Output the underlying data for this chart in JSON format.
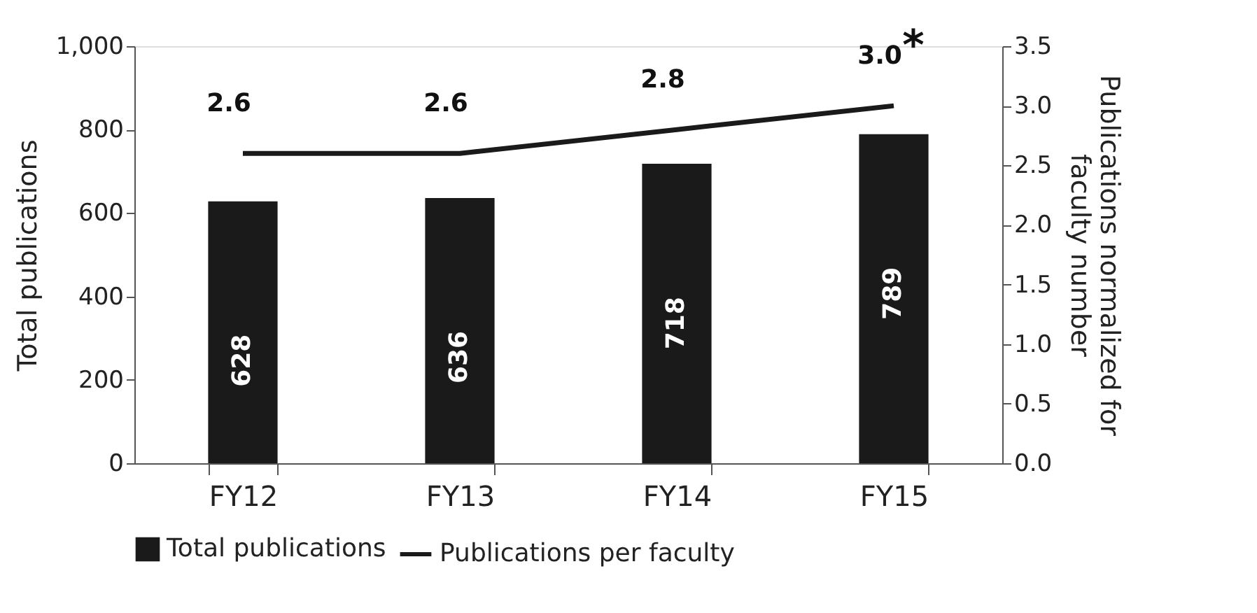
{
  "chart_data": {
    "type": "bar",
    "categories": [
      "FY12",
      "FY13",
      "FY14",
      "FY15"
    ],
    "ylabel": "Total publications",
    "y2label": "Publications normalized for faculty number",
    "series": [
      {
        "name": "Total publications",
        "color": "#1a1a1a",
        "values": [
          628,
          636,
          718,
          789
        ]
      },
      {
        "name": "Publications per faculty",
        "type": "line",
        "axis": "y2",
        "color": "#1a1a1a",
        "values": [
          2.6,
          2.6,
          2.8,
          3.0
        ],
        "value_labels": [
          "2.6",
          "2.6",
          "2.8",
          "3.0"
        ]
      }
    ],
    "ylim": [
      0,
      1000
    ],
    "yticks": [
      0,
      200,
      400,
      600,
      800,
      {
        "value": 1000,
        "label": "1,000"
      }
    ],
    "y2lim": [
      0,
      3.5
    ],
    "y2ticks": [
      {
        "value": 0,
        "label": "0.0"
      },
      {
        "value": 0.5,
        "label": "0.5"
      },
      {
        "value": 1,
        "label": "1.0"
      },
      {
        "value": 1.5,
        "label": "1.5"
      },
      {
        "value": 2,
        "label": "2.0"
      },
      {
        "value": 2.5,
        "label": "2.5"
      },
      {
        "value": 3,
        "label": "3.0"
      },
      {
        "value": 3.5,
        "label": "3.5"
      }
    ],
    "annotations": [
      "*"
    ],
    "data_labels": true,
    "legend": "bottom",
    "grid": false,
    "marker": "none",
    "line_style": "solid"
  }
}
